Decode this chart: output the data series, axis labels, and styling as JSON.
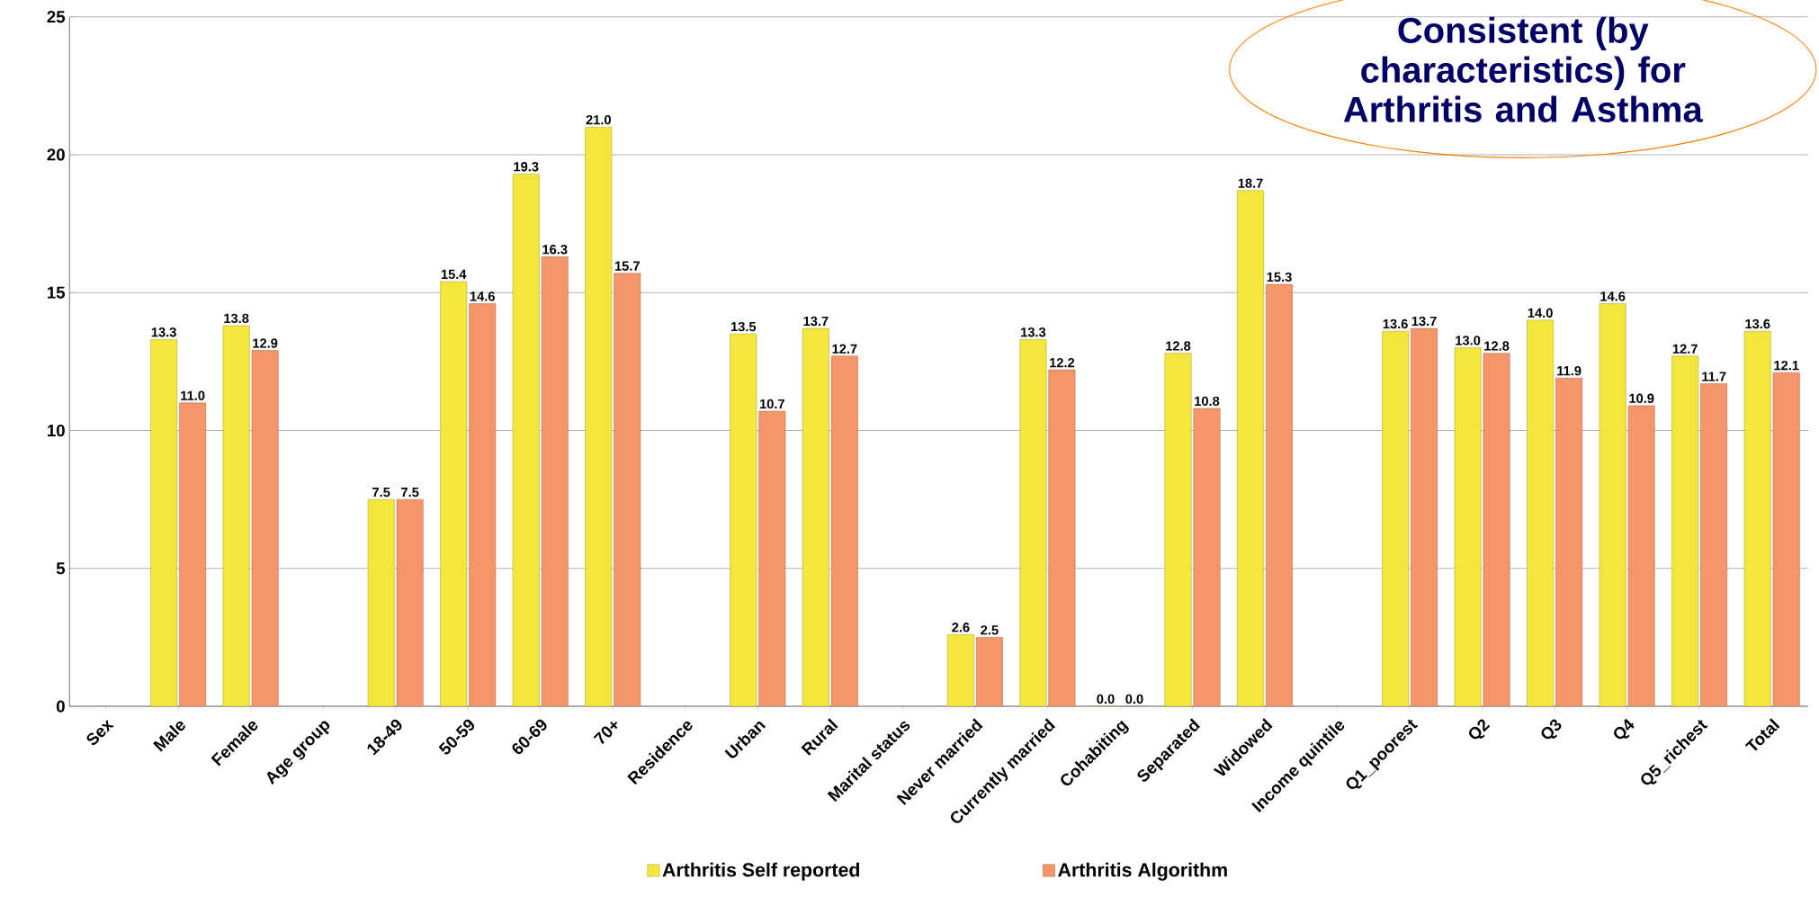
{
  "chart_data": {
    "type": "bar",
    "categories": [
      "Sex",
      "Male",
      "Female",
      "Age group",
      "18-49",
      "50-59",
      "60-69",
      "70+",
      "Residence",
      "Urban",
      "Rural",
      "Marital status",
      "Never married",
      "Currently married",
      "Cohabiting",
      "Separated",
      "Widowed",
      "Income quintile",
      "Q1_poorest",
      "Q2",
      "Q3",
      "Q4",
      "Q5_richest",
      "Total"
    ],
    "series": [
      {
        "name": "Arthritis Self reported",
        "color": "#f5e63c",
        "values": [
          null,
          13.3,
          13.8,
          null,
          7.5,
          15.4,
          19.3,
          21.0,
          null,
          13.5,
          13.7,
          null,
          2.6,
          13.3,
          0.0,
          12.8,
          18.7,
          null,
          13.6,
          13.0,
          14.0,
          14.6,
          12.7,
          13.6
        ],
        "value_labels": [
          null,
          "13.3",
          "13.8",
          null,
          "7.5",
          "15.4",
          "19.3",
          "21.0",
          null,
          "13.5",
          "13.7",
          null,
          "2.6",
          "13.3",
          "0.0",
          "12.8",
          "18.7",
          null,
          "13.6",
          "13.0",
          "14.0",
          "14.6",
          "12.7",
          "13.6"
        ]
      },
      {
        "name": "Arthritis Algorithm",
        "color": "#f4956a",
        "values": [
          null,
          11.0,
          12.9,
          null,
          7.5,
          14.6,
          16.3,
          15.7,
          null,
          10.7,
          12.7,
          null,
          2.5,
          12.2,
          0.0,
          10.8,
          15.3,
          null,
          13.7,
          12.8,
          11.9,
          10.9,
          11.7,
          12.1
        ],
        "value_labels": [
          null,
          "11.0",
          "12.9",
          null,
          "7.5",
          "14.6",
          "16.3",
          "15.7",
          null,
          "10.7",
          "12.7",
          null,
          "2.5",
          "12.2",
          "0.0",
          "10.8",
          "15.3",
          null,
          "13.7",
          "12.8",
          "11.9",
          "10.9",
          "11.7",
          "12.1"
        ]
      }
    ],
    "ylim": [
      0,
      25
    ],
    "yticks": [
      0,
      5,
      10,
      15,
      20,
      25
    ],
    "grid": "y",
    "legend": "bottom",
    "annotations": [
      "Consistent (by characteristics) for Arthritis and Asthma"
    ]
  }
}
